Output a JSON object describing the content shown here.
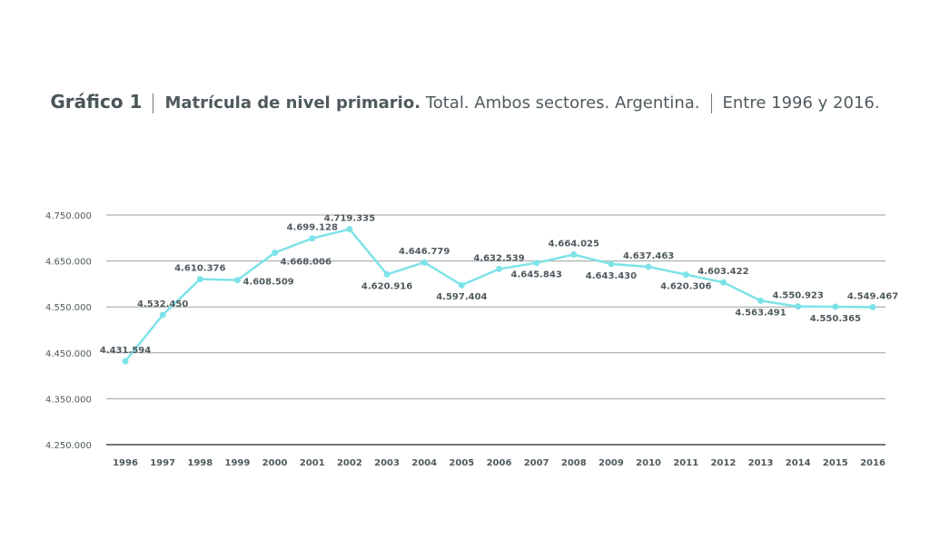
{
  "title": {
    "label": "Gráfico 1",
    "bold": "Matrícula de nivel primario.",
    "rest": "Total. Ambos sectores. Argentina.",
    "range": "Entre 1996 y 2016."
  },
  "colors": {
    "line": "#7de3e8",
    "grid": "#9aa0a2",
    "text": "#4f5a5e"
  },
  "chart_data": {
    "type": "line",
    "title": "Matrícula de nivel primario. Total. Ambos sectores. Argentina. Entre 1996 y 2016.",
    "xlabel": "",
    "ylabel": "",
    "ylim": [
      4250000,
      4750000
    ],
    "y_ticks": [
      4250000,
      4350000,
      4450000,
      4550000,
      4650000,
      4750000
    ],
    "y_tick_labels": [
      "4.250.000",
      "4.350.000",
      "4.450.000",
      "4.550.000",
      "4.650.000",
      "4.750.000"
    ],
    "categories": [
      "1996",
      "1997",
      "1998",
      "1999",
      "2000",
      "2001",
      "2002",
      "2003",
      "2004",
      "2005",
      "2006",
      "2007",
      "2008",
      "2009",
      "2010",
      "2011",
      "2012",
      "2013",
      "2014",
      "2015",
      "2016"
    ],
    "values": [
      4431594,
      4532450,
      4610376,
      4608509,
      4668006,
      4699128,
      4719335,
      4620916,
      4646779,
      4597404,
      4632539,
      4645843,
      4664025,
      4643430,
      4637463,
      4620306,
      4603422,
      4563491,
      4550923,
      4550365,
      4549467
    ],
    "value_labels": [
      "4.431.594",
      "4.532.450",
      "4.610.376",
      "4.608.509",
      "4.668.006",
      "4.699.128",
      "4.719.335",
      "4.620.916",
      "4.646.779",
      "4.597.404",
      "4.632.539",
      "4.645.843",
      "4.664.025",
      "4.643.430",
      "4.637.463",
      "4.620.306",
      "4.603.422",
      "4.563.491",
      "4.550.923",
      "4.550.365",
      "4.549.467"
    ],
    "grid": true
  }
}
